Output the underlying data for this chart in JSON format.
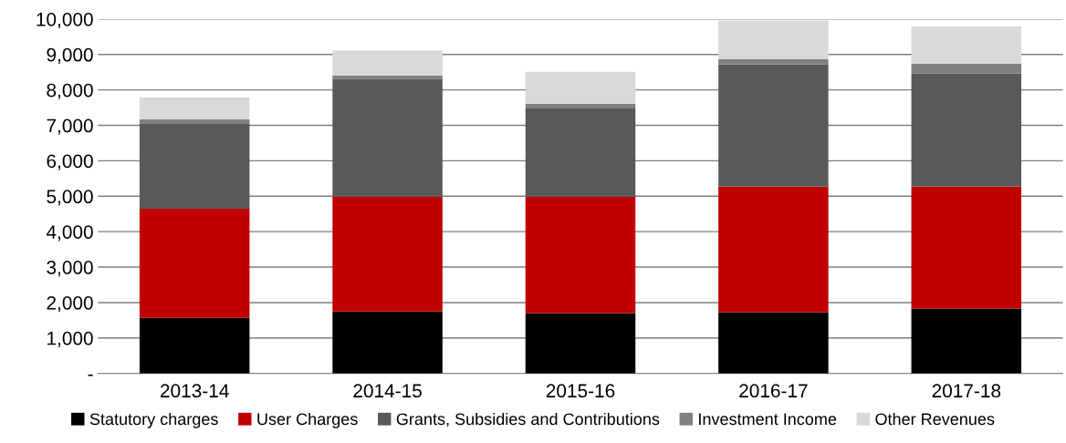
{
  "chart_data": {
    "type": "bar",
    "stacked": true,
    "categories": [
      "2013-14",
      "2014-15",
      "2015-16",
      "2016-17",
      "2017-18"
    ],
    "series": [
      {
        "name": "Statutory charges",
        "color": "#000000",
        "values": [
          1570,
          1750,
          1700,
          1720,
          1830
        ]
      },
      {
        "name": "User Charges",
        "color": "#c00000",
        "values": [
          3080,
          3240,
          3290,
          3550,
          3440
        ]
      },
      {
        "name": "Grants, Subsidies and Contributions",
        "color": "#595959",
        "values": [
          2390,
          3320,
          2490,
          3450,
          3190
        ]
      },
      {
        "name": "Investment Income",
        "color": "#808080",
        "values": [
          130,
          100,
          130,
          150,
          280
        ]
      },
      {
        "name": "Other Revenues",
        "color": "#d9d9d9",
        "values": [
          620,
          700,
          900,
          1080,
          1050
        ]
      }
    ],
    "ylim": [
      0,
      10000
    ],
    "yticks": [
      {
        "value": 0,
        "label": "-"
      },
      {
        "value": 1000,
        "label": "1,000"
      },
      {
        "value": 2000,
        "label": "2,000"
      },
      {
        "value": 3000,
        "label": "3,000"
      },
      {
        "value": 4000,
        "label": "4,000"
      },
      {
        "value": 5000,
        "label": "5,000"
      },
      {
        "value": 6000,
        "label": "6,000"
      },
      {
        "value": 7000,
        "label": "7,000"
      },
      {
        "value": 8000,
        "label": "8,000"
      },
      {
        "value": 9000,
        "label": "9,000"
      },
      {
        "value": 10000,
        "label": "10,000"
      }
    ],
    "grid": "y",
    "legend": "bottom"
  }
}
